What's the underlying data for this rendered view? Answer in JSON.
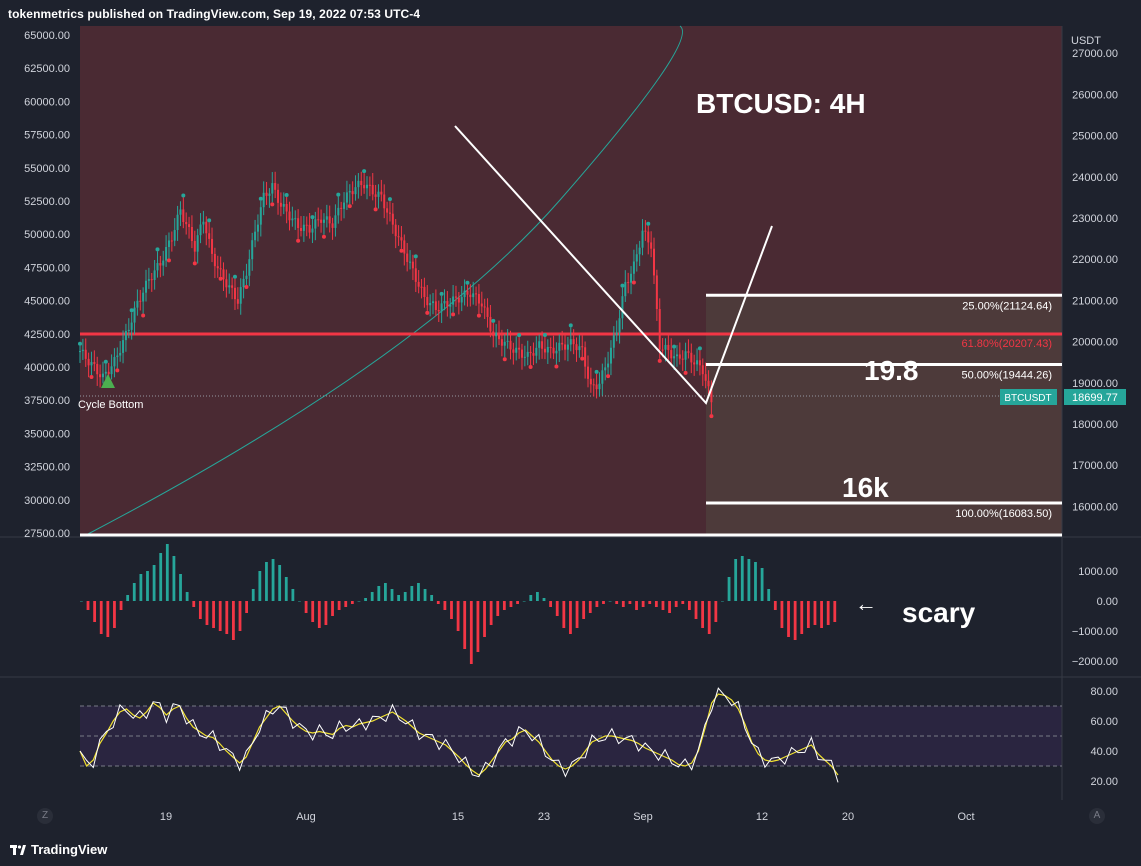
{
  "header": {
    "publisher_line": "tokenmetrics published on TradingView.com, Sep 19, 2022 07:53 UTC-4"
  },
  "footer": {
    "brand": "TradingView",
    "z_button": "Z",
    "a_button": "A"
  },
  "chart_data": [
    {
      "type": "candlestick",
      "title": "BTCUSD: 4H",
      "symbol": "BTCUSDT",
      "last_price": "18699.77",
      "currency_label": "USDT",
      "left_axis_ticks": [
        "65000.00",
        "62500.00",
        "60000.00",
        "57500.00",
        "55000.00",
        "52500.00",
        "50000.00",
        "47500.00",
        "45000.00",
        "42500.00",
        "40000.00",
        "37500.00",
        "35000.00",
        "32500.00",
        "30000.00",
        "27500.00"
      ],
      "right_axis_ticks": [
        "27000.00",
        "26000.00",
        "25000.00",
        "24000.00",
        "23000.00",
        "22000.00",
        "21000.00",
        "20000.00",
        "19000.00",
        "18000.00",
        "17000.00",
        "16000.00"
      ],
      "x_ticks": [
        "19",
        "Aug",
        "15",
        "23",
        "Sep",
        "12",
        "20",
        "Oct"
      ],
      "fib_levels": [
        {
          "label": "25.00%(21124.64)",
          "value": 21124.64,
          "color": "#ffffff"
        },
        {
          "label": "61.80%(20207.43)",
          "value": 20207.43,
          "color": "#f23645"
        },
        {
          "label": "50.00%(19444.26)",
          "value": 19444.26,
          "color": "#ffffff"
        },
        {
          "label": "100.00%(16083.50)",
          "value": 16083.5,
          "color": "#ffffff"
        }
      ],
      "annotations": {
        "cycle_bottom": "Cycle Bottom",
        "level_19": "19.8",
        "level_16": "16k"
      },
      "price_path": [
        [
          0,
          41.2
        ],
        [
          4,
          40.2
        ],
        [
          8,
          39.2
        ],
        [
          12,
          40.4
        ],
        [
          16,
          42.4
        ],
        [
          20,
          44.8
        ],
        [
          24,
          46.6
        ],
        [
          28,
          47.8
        ],
        [
          32,
          49.8
        ],
        [
          35,
          51.8
        ],
        [
          38,
          50.2
        ],
        [
          40,
          49.0
        ],
        [
          43,
          51.2
        ],
        [
          46,
          48.4
        ],
        [
          49,
          47.0
        ],
        [
          52,
          46.0
        ],
        [
          55,
          45.0
        ],
        [
          58,
          47.2
        ],
        [
          61,
          50.2
        ],
        [
          64,
          52.8
        ],
        [
          67,
          53.6
        ],
        [
          70,
          52.2
        ],
        [
          73,
          51.4
        ],
        [
          76,
          50.6
        ],
        [
          80,
          50.4
        ],
        [
          84,
          51.2
        ],
        [
          88,
          50.8
        ],
        [
          92,
          52.6
        ],
        [
          96,
          53.6
        ],
        [
          99,
          53.8
        ],
        [
          102,
          53.2
        ],
        [
          105,
          52.8
        ],
        [
          108,
          51.2
        ],
        [
          112,
          49.2
        ],
        [
          116,
          47.2
        ],
        [
          120,
          45.2
        ],
        [
          124,
          44.4
        ],
        [
          128,
          44.8
        ],
        [
          132,
          45.2
        ],
        [
          136,
          45.6
        ],
        [
          140,
          44.8
        ],
        [
          144,
          42.4
        ],
        [
          148,
          41.8
        ],
        [
          152,
          41.2
        ],
        [
          156,
          40.8
        ],
        [
          160,
          41.6
        ],
        [
          164,
          41.2
        ],
        [
          168,
          41.6
        ],
        [
          172,
          41.8
        ],
        [
          175,
          41.2
        ],
        [
          178,
          38.4
        ],
        [
          181,
          38.8
        ],
        [
          184,
          40.6
        ],
        [
          187,
          42.8
        ],
        [
          190,
          46.2
        ],
        [
          193,
          47.6
        ],
        [
          196,
          50.2
        ],
        [
          199,
          49.2
        ],
        [
          202,
          41.6
        ],
        [
          205,
          41.2
        ],
        [
          208,
          40.6
        ],
        [
          211,
          41.0
        ],
        [
          214,
          40.4
        ],
        [
          217,
          39.8
        ],
        [
          220,
          37.4
        ]
      ]
    },
    {
      "type": "histogram",
      "name": "momentum",
      "y_ticks": [
        "1000.00",
        "0.00",
        "−1000.00",
        "−2000.00"
      ],
      "annotation": "scary",
      "values": [
        0,
        -300,
        -700,
        -1100,
        -1200,
        -900,
        -300,
        200,
        600,
        900,
        1000,
        1200,
        1600,
        1900,
        1500,
        900,
        300,
        -200,
        -600,
        -800,
        -900,
        -1000,
        -1100,
        -1300,
        -1000,
        -400,
        400,
        1000,
        1300,
        1400,
        1200,
        800,
        400,
        0,
        -400,
        -700,
        -900,
        -800,
        -500,
        -300,
        -200,
        -100,
        0,
        100,
        300,
        500,
        600,
        400,
        200,
        300,
        500,
        600,
        400,
        200,
        -100,
        -300,
        -600,
        -1000,
        -1600,
        -2100,
        -1700,
        -1200,
        -800,
        -500,
        -300,
        -200,
        -100,
        0,
        200,
        300,
        100,
        -200,
        -500,
        -900,
        -1100,
        -900,
        -600,
        -400,
        -200,
        -100,
        0,
        -100,
        -200,
        -100,
        -300,
        -200,
        -100,
        -200,
        -300,
        -400,
        -200,
        -100,
        -300,
        -600,
        -900,
        -1100,
        -700,
        0,
        800,
        1400,
        1500,
        1400,
        1300,
        1100,
        400,
        -300,
        -900,
        -1200,
        -1300,
        -1100,
        -900,
        -800,
        -900,
        -800,
        -700
      ]
    },
    {
      "type": "line",
      "name": "rsi",
      "y_ticks": [
        "80.00",
        "60.00",
        "40.00",
        "20.00"
      ],
      "bands": [
        70,
        50,
        30
      ],
      "ylim": [
        15,
        85
      ],
      "values": [
        40,
        30,
        34,
        45,
        52,
        60,
        66,
        68,
        64,
        62,
        66,
        72,
        69,
        64,
        68,
        70,
        62,
        56,
        53,
        50,
        49,
        45,
        40,
        36,
        32,
        36,
        46,
        56,
        62,
        68,
        70,
        65,
        60,
        56,
        53,
        52,
        53,
        52,
        51,
        55,
        57,
        56,
        58,
        59,
        60,
        62,
        64,
        66,
        63,
        60,
        56,
        52,
        50,
        48,
        46,
        44,
        40,
        36,
        31,
        27,
        24,
        28,
        34,
        40,
        46,
        48,
        52,
        54,
        50,
        46,
        40,
        34,
        30,
        28,
        30,
        34,
        40,
        46,
        48,
        50,
        50,
        49,
        48,
        47,
        45,
        42,
        40,
        38,
        36,
        34,
        31,
        30,
        32,
        40,
        55,
        72,
        78,
        77,
        74,
        68,
        58,
        46,
        38,
        34,
        33,
        34,
        36,
        38,
        40,
        42,
        44,
        38,
        34,
        30,
        24
      ]
    }
  ]
}
